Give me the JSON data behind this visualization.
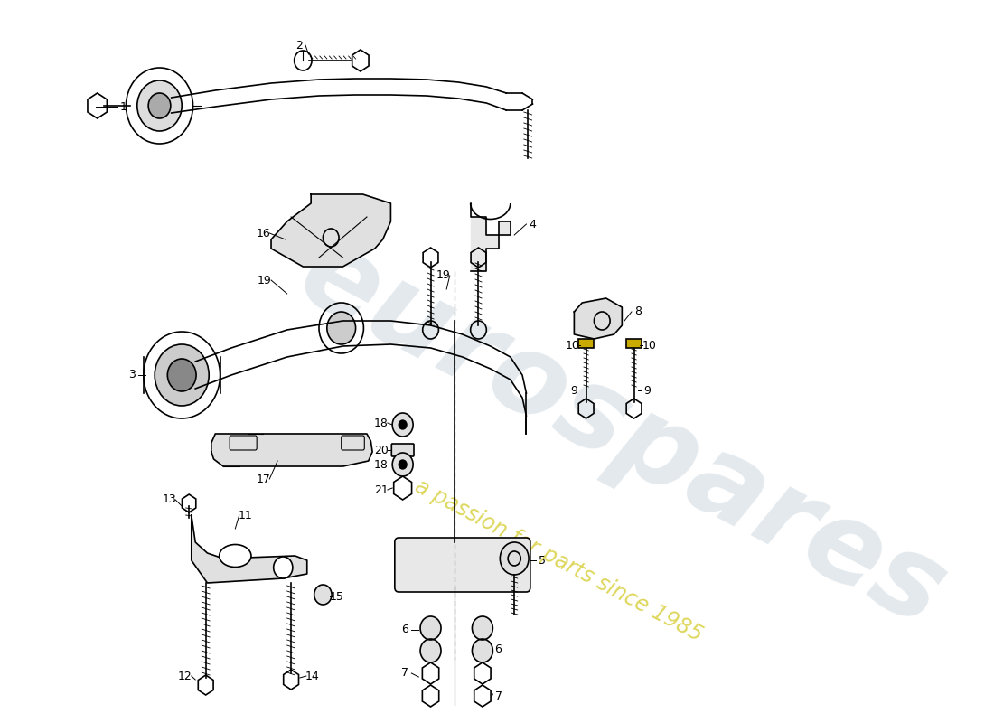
{
  "background_color": "#ffffff",
  "watermark_text1": "eurospares",
  "watermark_text2": "a passion for parts since 1985",
  "watermark_color": "#c8d4dc",
  "watermark_yellow": "#d8d040",
  "fig_width": 11.0,
  "fig_height": 8.0
}
